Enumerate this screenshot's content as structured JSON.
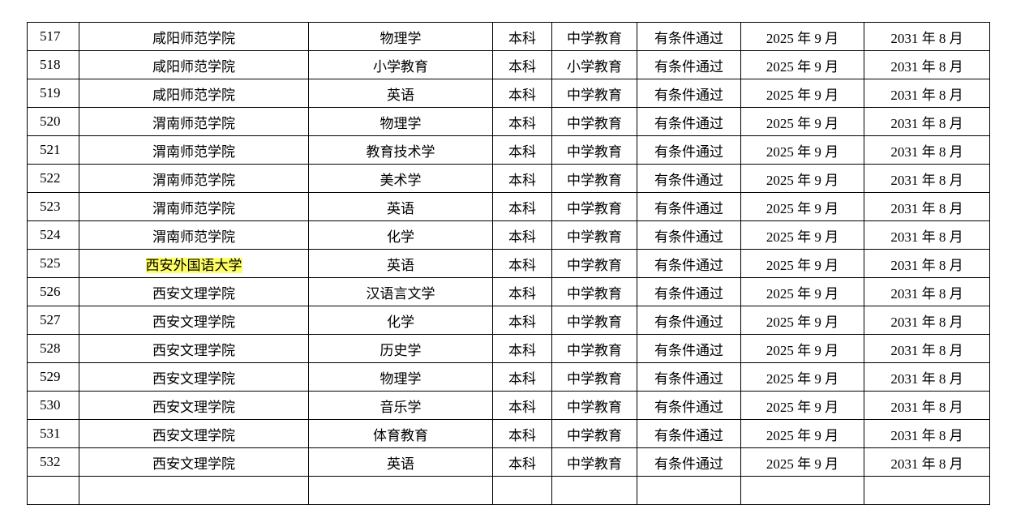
{
  "table": {
    "rows": [
      [
        "517",
        "咸阳师范学院",
        "物理学",
        "本科",
        "中学教育",
        "有条件通过",
        "2025 年 9 月",
        "2031 年 8 月"
      ],
      [
        "518",
        "咸阳师范学院",
        "小学教育",
        "本科",
        "小学教育",
        "有条件通过",
        "2025 年 9 月",
        "2031 年 8 月"
      ],
      [
        "519",
        "咸阳师范学院",
        "英语",
        "本科",
        "中学教育",
        "有条件通过",
        "2025 年 9 月",
        "2031 年 8 月"
      ],
      [
        "520",
        "渭南师范学院",
        "物理学",
        "本科",
        "中学教育",
        "有条件通过",
        "2025 年 9 月",
        "2031 年 8 月"
      ],
      [
        "521",
        "渭南师范学院",
        "教育技术学",
        "本科",
        "中学教育",
        "有条件通过",
        "2025 年 9 月",
        "2031 年 8 月"
      ],
      [
        "522",
        "渭南师范学院",
        "美术学",
        "本科",
        "中学教育",
        "有条件通过",
        "2025 年 9 月",
        "2031 年 8 月"
      ],
      [
        "523",
        "渭南师范学院",
        "英语",
        "本科",
        "中学教育",
        "有条件通过",
        "2025 年 9 月",
        "2031 年 8 月"
      ],
      [
        "524",
        "渭南师范学院",
        "化学",
        "本科",
        "中学教育",
        "有条件通过",
        "2025 年 9 月",
        "2031 年 8 月"
      ],
      [
        "525",
        "西安外国语大学",
        "英语",
        "本科",
        "中学教育",
        "有条件通过",
        "2025 年 9 月",
        "2031 年 8 月"
      ],
      [
        "526",
        "西安文理学院",
        "汉语言文学",
        "本科",
        "中学教育",
        "有条件通过",
        "2025 年 9 月",
        "2031 年 8 月"
      ],
      [
        "527",
        "西安文理学院",
        "化学",
        "本科",
        "中学教育",
        "有条件通过",
        "2025 年 9 月",
        "2031 年 8 月"
      ],
      [
        "528",
        "西安文理学院",
        "历史学",
        "本科",
        "中学教育",
        "有条件通过",
        "2025 年 9 月",
        "2031 年 8 月"
      ],
      [
        "529",
        "西安文理学院",
        "物理学",
        "本科",
        "中学教育",
        "有条件通过",
        "2025 年 9 月",
        "2031 年 8 月"
      ],
      [
        "530",
        "西安文理学院",
        "音乐学",
        "本科",
        "中学教育",
        "有条件通过",
        "2025 年 9 月",
        "2031 年 8 月"
      ],
      [
        "531",
        "西安文理学院",
        "体育教育",
        "本科",
        "中学教育",
        "有条件通过",
        "2025 年 9 月",
        "2031 年 8 月"
      ],
      [
        "532",
        "西安文理学院",
        "英语",
        "本科",
        "中学教育",
        "有条件通过",
        "2025 年 9 月",
        "2031 年 8 月"
      ]
    ],
    "highlight": {
      "row": 8,
      "column": 1,
      "color": "#ffff66"
    }
  }
}
